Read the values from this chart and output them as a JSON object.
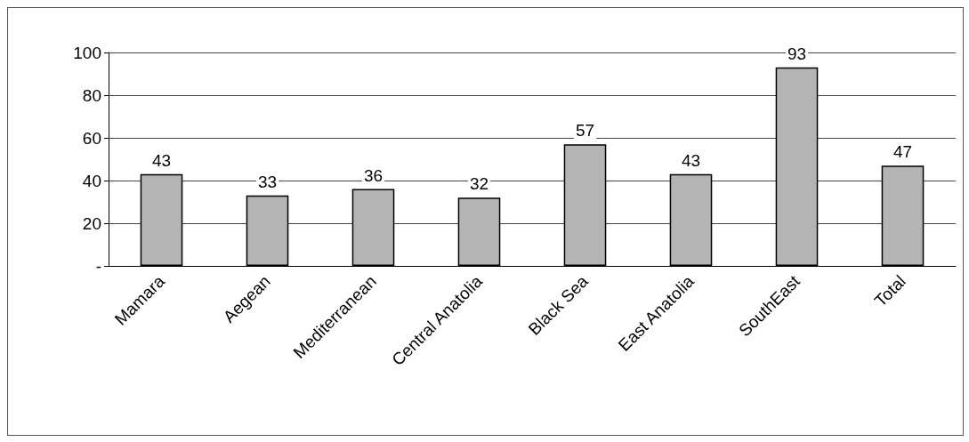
{
  "chart_data": {
    "type": "bar",
    "categories": [
      "Mamara",
      "Aegean",
      "Mediterranean",
      "Central Anatolia",
      "Black Sea",
      "East Anatolia",
      "SouthEast",
      "Total"
    ],
    "values": [
      43,
      33,
      36,
      32,
      57,
      43,
      93,
      47
    ],
    "color": "#b4b4b4",
    "ylim": [
      0,
      100
    ],
    "yticks": [
      {
        "value": 0,
        "label": "-"
      },
      20,
      40,
      60,
      80,
      100
    ],
    "grid": "y",
    "data_labels": true
  }
}
